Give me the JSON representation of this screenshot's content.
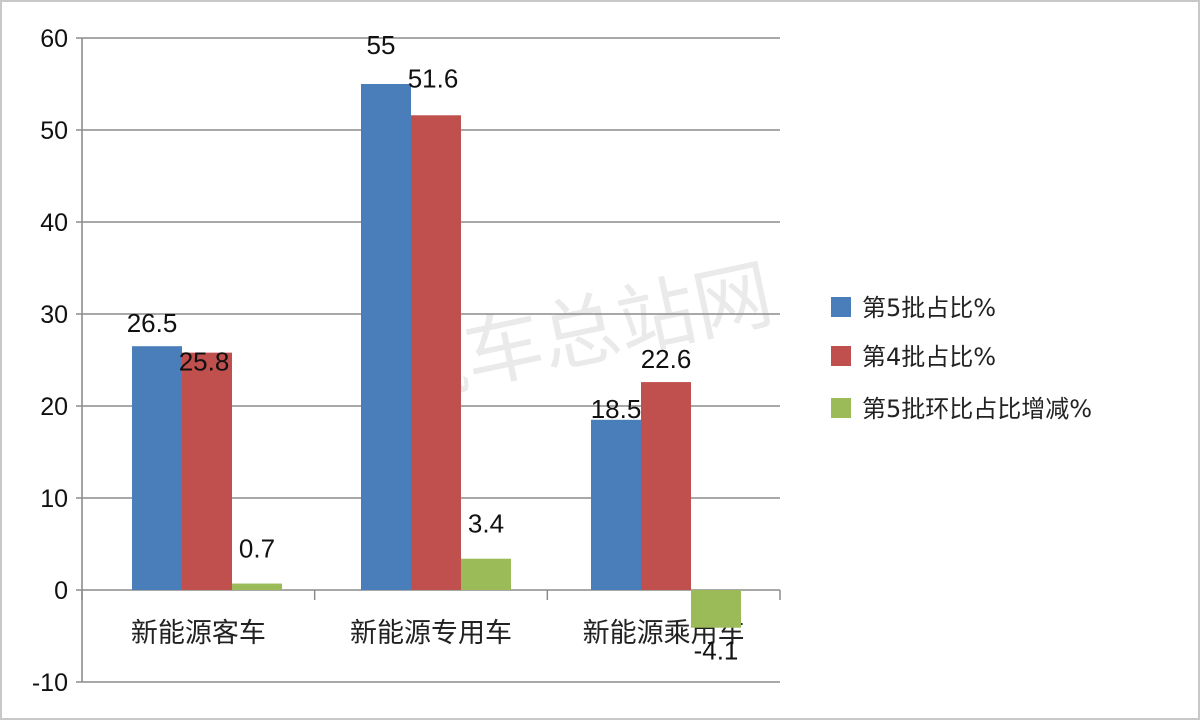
{
  "watermark": "汽车总站网",
  "chart_data": {
    "type": "bar",
    "title": "",
    "xlabel": "",
    "ylabel": "",
    "categories": [
      "新能源客车",
      "新能源专用车",
      "新能源乘用车"
    ],
    "series": [
      {
        "name": "第5批占比%",
        "values": [
          26.5,
          55,
          18.5
        ],
        "color": "#4a7ebb"
      },
      {
        "name": "第4批占比%",
        "values": [
          25.8,
          51.6,
          22.6
        ],
        "color": "#c0504d"
      },
      {
        "name": "第5批环比占比增减%",
        "values": [
          0.7,
          3.4,
          -4.1
        ],
        "color": "#9bbb59"
      }
    ],
    "ylim": [
      -10,
      60
    ],
    "yticks": [
      -10,
      0,
      10,
      20,
      30,
      40,
      50,
      60
    ],
    "grid": true,
    "legend_position": "right"
  }
}
